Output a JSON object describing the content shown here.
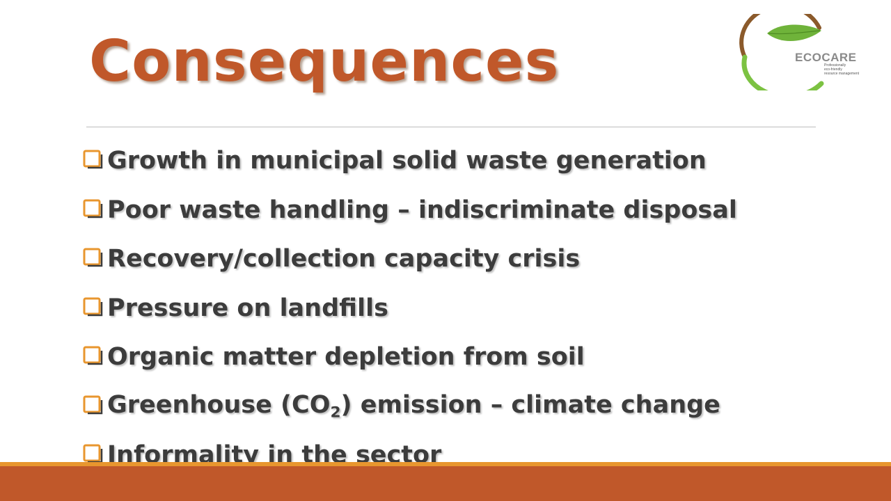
{
  "slide": {
    "title": "Consequences",
    "bullets": [
      {
        "text": "Growth in municipal solid waste generation"
      },
      {
        "text": "Poor waste handling – indiscriminate disposal"
      },
      {
        "text": "Recovery/collection capacity crisis"
      },
      {
        "text": "Pressure on landfills"
      },
      {
        "text": "Organic matter depletion from soil"
      },
      {
        "pre": "Greenhouse (CO",
        "sub": "2",
        "post": ") emission – climate change"
      },
      {
        "text": "Informality in the sector"
      }
    ],
    "colors": {
      "title": "#c0582a",
      "bullet_text": "#3c3c3c",
      "checkbox": "#e8962e",
      "footer_band": "#c0582a",
      "footer_line": "#e8962e",
      "logo_green": "#7cc242",
      "logo_brown": "#8b5a2b"
    },
    "icons": {
      "bullet": "checkbox-icon",
      "logo": "ecocare-leaf-logo"
    }
  },
  "logo": {
    "name": "ECOCARE",
    "tagline": [
      "Professionally",
      "eco-friendly",
      "resource management"
    ]
  }
}
